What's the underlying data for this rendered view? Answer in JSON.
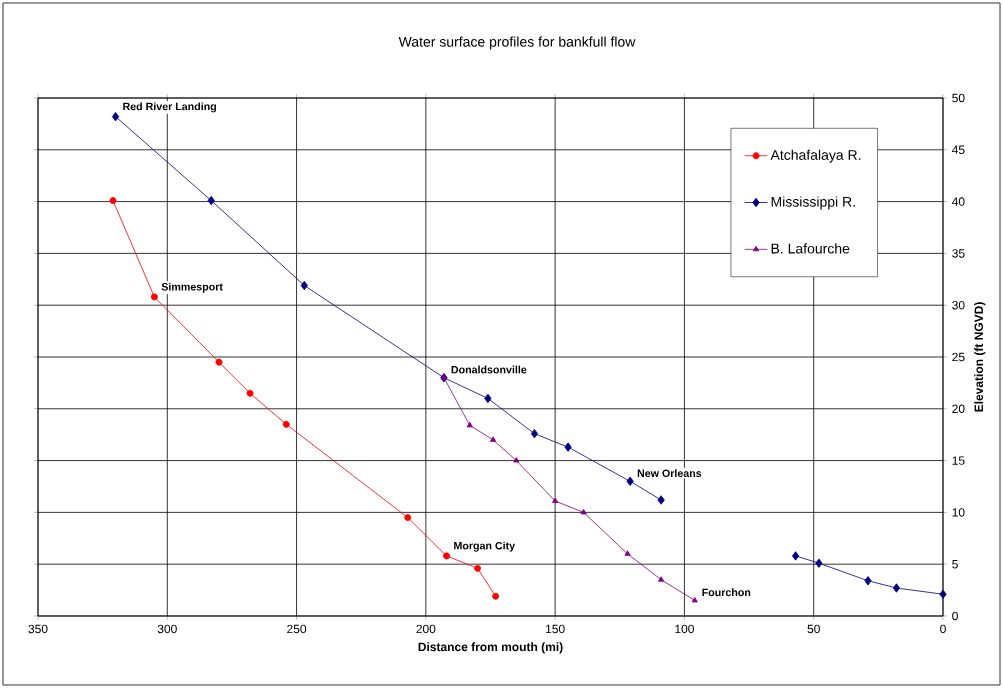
{
  "chart_data": {
    "type": "line",
    "title": "Water surface profiles for bankfull flow",
    "xlabel": "Distance from mouth (mi)",
    "ylabel": "Elevation (ft NGVD)",
    "xlim": [
      350,
      0
    ],
    "xticks": [
      350,
      300,
      250,
      200,
      150,
      100,
      50,
      0
    ],
    "ylim": [
      0,
      50
    ],
    "yticks": [
      0,
      5,
      10,
      15,
      20,
      25,
      30,
      35,
      40,
      45,
      50
    ],
    "grid": true,
    "legend": "top right",
    "line_style": "solid",
    "series": [
      {
        "name": "Atchafalaya R.",
        "color": "#ff0000",
        "marker": "circle",
        "x": [
          321,
          305,
          280,
          268,
          254,
          207,
          192,
          180,
          173
        ],
        "values": [
          40.1,
          30.8,
          24.5,
          21.5,
          18.5,
          9.5,
          5.8,
          4.6,
          1.9
        ]
      },
      {
        "name": "Mississippi R.",
        "color": "#000080",
        "marker": "diamond",
        "x": [
          320,
          283,
          247,
          193,
          176,
          158,
          145,
          121,
          109
        ],
        "values": [
          48.2,
          40.1,
          31.9,
          23.0,
          21.0,
          17.6,
          16.3,
          13.0,
          11.2
        ]
      },
      {
        "name": "B. Lafourche",
        "color": "#800080",
        "marker": "triangle",
        "x": [
          193,
          183,
          174,
          165,
          150,
          139,
          122,
          109,
          96
        ],
        "values": [
          23.0,
          18.4,
          17.0,
          15.0,
          11.1,
          10.0,
          6.0,
          3.5,
          1.5
        ]
      },
      {
        "color": "#000080",
        "marker": "diamond",
        "x": [
          57,
          48,
          29,
          18,
          0
        ],
        "values": [
          5.8,
          5.1,
          3.4,
          2.7,
          2.1
        ]
      }
    ],
    "annotations": [
      {
        "text": "Red River Landing",
        "x": 320,
        "y": 48.2
      },
      {
        "text": "Simmesport",
        "x": 305,
        "y": 30.8
      },
      {
        "text": "Donaldsonville",
        "x": 193,
        "y": 23.0
      },
      {
        "text": "New Orleans",
        "x": 121,
        "y": 13.0
      },
      {
        "text": "Morgan City",
        "x": 192,
        "y": 5.8
      },
      {
        "text": "Fourchon",
        "x": 96,
        "y": 1.5
      }
    ]
  }
}
